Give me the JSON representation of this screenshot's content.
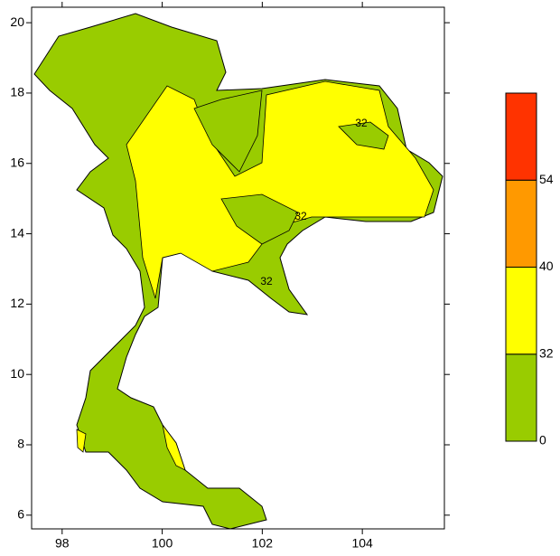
{
  "map": {
    "xlim": [
      97.39,
      105.64
    ],
    "ylim": [
      5.61,
      20.44
    ],
    "xticks": [
      98,
      100,
      102,
      104
    ],
    "yticks": [
      6,
      8,
      10,
      12,
      14,
      16,
      18,
      20
    ],
    "contour_labels": [
      "32",
      "32",
      "32"
    ]
  },
  "legend": {
    "levels": [
      0,
      32,
      40,
      54
    ],
    "colors": [
      "#99cc00",
      "#ffff00",
      "#ff9900",
      "#ff3300"
    ]
  }
}
